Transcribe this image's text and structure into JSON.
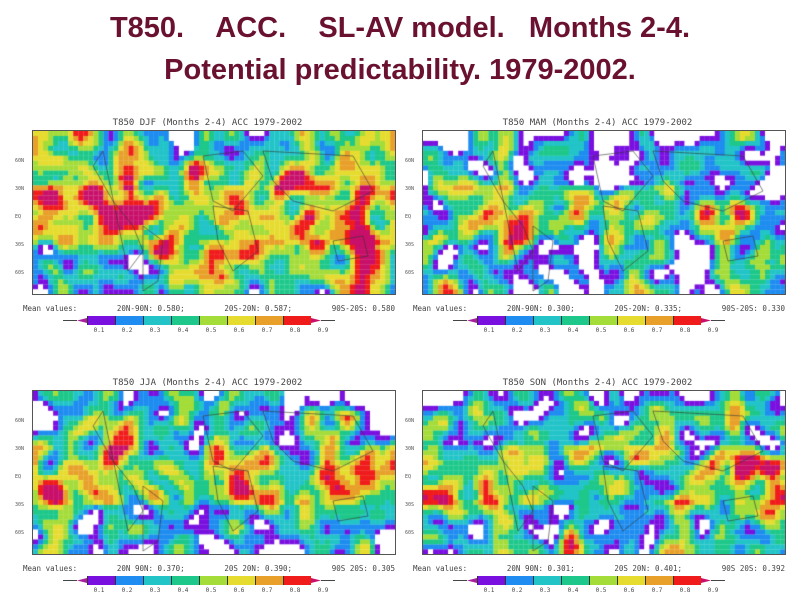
{
  "slide": {
    "title_line1": "T850.    ACC.    SL-AV model.   Months 2-4.",
    "title_line2": "Potential predictability. 1979-2002."
  },
  "colorbar": {
    "ticks": [
      "0.1",
      "0.2",
      "0.3",
      "0.4",
      "0.5",
      "0.6",
      "0.7",
      "0.8",
      "0.9"
    ],
    "colors": [
      "#a8209c",
      "#7a10e0",
      "#1e8cf0",
      "#22c4c8",
      "#1ec88a",
      "#a4dc3a",
      "#e6dc30",
      "#e8a02a",
      "#f01c1c",
      "#c8106a"
    ]
  },
  "lat_labels": [
    "60N",
    "30N",
    "EQ",
    "30S",
    "60S"
  ],
  "panels": [
    {
      "title": "T850 DJF (Months 2-4) ACC 1979-2002",
      "mean_label": "Mean values:",
      "mean": [
        "20N-90N: 0.580;",
        "20S-20N: 0.587;",
        "90S-20S: 0.580"
      ],
      "seed": 1,
      "warm": 0.62
    },
    {
      "title": "T850 MAM (Months 2-4) ACC 1979-2002",
      "mean_label": "Mean values:",
      "mean": [
        "20N-90N: 0.300;",
        "20S-20N: 0.335;",
        "90S-20S: 0.330"
      ],
      "seed": 2,
      "warm": 0.42
    },
    {
      "title": "T850 JJA (Months 2-4) ACC 1979-2002",
      "mean_label": "Mean values:",
      "mean": [
        "20N 90N: 0.370;",
        "20S 20N: 0.390;",
        "90S 20S: 0.305"
      ],
      "seed": 3,
      "warm": 0.5
    },
    {
      "title": "T850 SON (Months 2-4) ACC 1979-2002",
      "mean_label": "Mean values:",
      "mean": [
        "20N 90N: 0.301;",
        "20S 20N: 0.401;",
        "90S 20S: 0.392"
      ],
      "seed": 4,
      "warm": 0.5
    }
  ]
}
